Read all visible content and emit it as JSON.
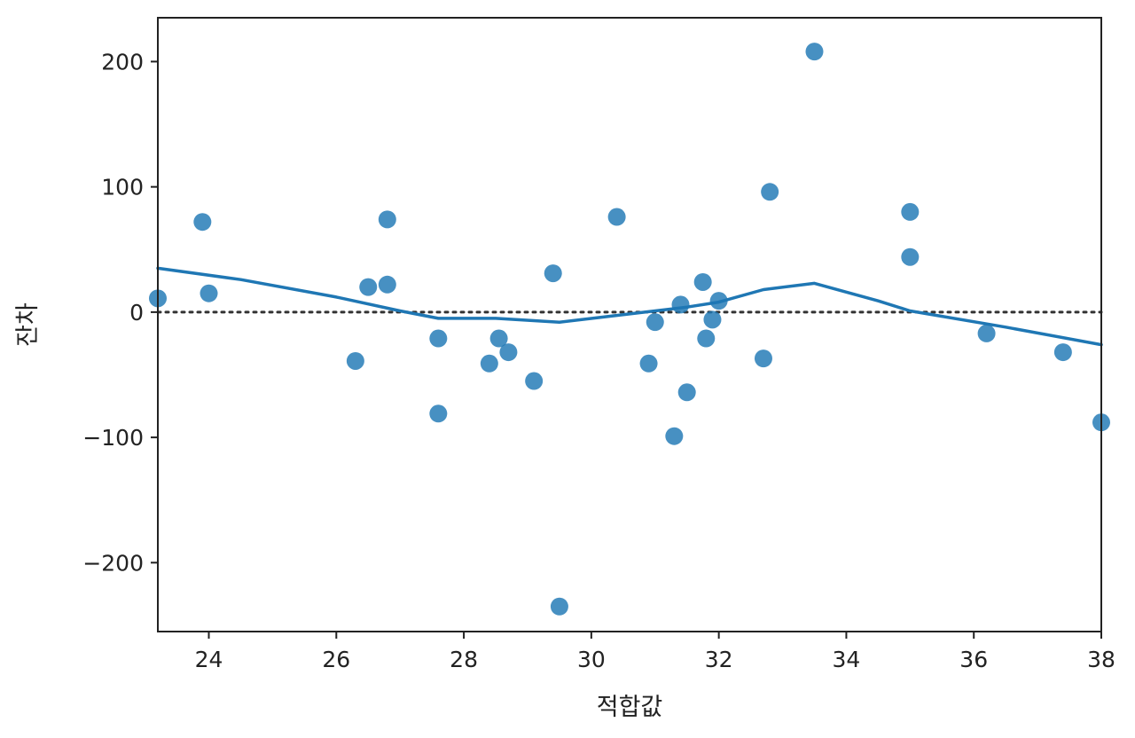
{
  "chart_data": {
    "type": "scatter",
    "title": "",
    "xlabel": "적합값",
    "ylabel": "잔차",
    "xlim": [
      23.2,
      38.0
    ],
    "ylim": [
      -255,
      235
    ],
    "x_ticks": [
      "24",
      "26",
      "28",
      "30",
      "32",
      "34",
      "36",
      "38"
    ],
    "y_ticks": [
      "200",
      "100",
      "0",
      "−100",
      "−200"
    ],
    "grid": false,
    "reference_line": {
      "y": 0,
      "style": "dotted",
      "color": "#333333"
    },
    "colors": {
      "points": "#1f77b4",
      "smooth_line": "#1f77b4"
    },
    "series": [
      {
        "kind": "points",
        "x": [
          23.2,
          23.9,
          24.0,
          26.3,
          26.5,
          26.8,
          26.8,
          27.6,
          27.6,
          28.4,
          28.55,
          28.7,
          29.1,
          29.4,
          29.5,
          30.4,
          30.9,
          31.0,
          31.3,
          31.4,
          31.5,
          31.75,
          31.8,
          31.9,
          32.0,
          32.7,
          32.8,
          33.5,
          35.0,
          35.0,
          36.2,
          37.4,
          38.0
        ],
        "y": [
          11,
          72,
          15,
          -39,
          20,
          74,
          22,
          -21,
          -81,
          -41,
          -21,
          -32,
          -55,
          31,
          -235,
          76,
          -41,
          -8,
          -99,
          6,
          -64,
          24,
          -21,
          -6,
          9,
          -37,
          96,
          208,
          80,
          44,
          -17,
          -32,
          -88
        ]
      },
      {
        "kind": "smooth_line",
        "x": [
          23.2,
          24.5,
          26.0,
          27.0,
          27.6,
          28.5,
          29.5,
          30.5,
          31.5,
          32.0,
          32.7,
          33.5,
          34.5,
          35.0,
          36.5,
          38.0
        ],
        "y": [
          35,
          26,
          12,
          1,
          -5,
          -5,
          -8,
          -2,
          4,
          8,
          18,
          23,
          9,
          1,
          -12,
          -26
        ]
      }
    ]
  }
}
